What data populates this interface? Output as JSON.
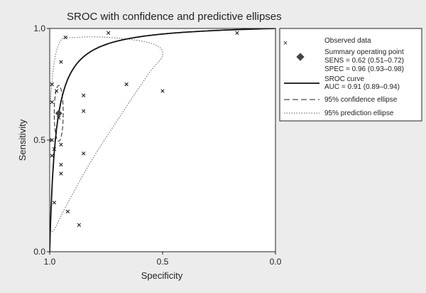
{
  "chart_data": {
    "type": "scatter",
    "title": "SROC with confidence and predictive ellipses",
    "xlabel": "Specificity",
    "ylabel": "Sensitivity",
    "x_reversed": true,
    "xlim": [
      1.0,
      0.0
    ],
    "ylim": [
      0.0,
      1.0
    ],
    "x_ticks": [
      "1.0",
      "0.5",
      "0.0"
    ],
    "y_ticks": [
      "0.0",
      "0.5",
      "1.0"
    ],
    "grid": false,
    "legend_position": "top-right",
    "colors": {
      "observed": "#222222",
      "summary": "#444444",
      "sroc": "#111111",
      "confidence": "#222222",
      "prediction": "#777777"
    },
    "series": [
      {
        "name": "Observed data",
        "kind": "scatter",
        "points": [
          {
            "spec": 0.93,
            "sens": 0.96
          },
          {
            "spec": 0.74,
            "sens": 0.98
          },
          {
            "spec": 0.17,
            "sens": 0.98
          },
          {
            "spec": 0.95,
            "sens": 0.85
          },
          {
            "spec": 0.66,
            "sens": 0.75
          },
          {
            "spec": 0.5,
            "sens": 0.72
          },
          {
            "spec": 0.85,
            "sens": 0.7
          },
          {
            "spec": 0.85,
            "sens": 0.63
          },
          {
            "spec": 0.99,
            "sens": 0.75
          },
          {
            "spec": 0.97,
            "sens": 0.72
          },
          {
            "spec": 0.99,
            "sens": 0.67
          },
          {
            "spec": 0.96,
            "sens": 0.6
          },
          {
            "spec": 1.0,
            "sens": 0.5
          },
          {
            "spec": 0.99,
            "sens": 0.5
          },
          {
            "spec": 0.98,
            "sens": 0.46
          },
          {
            "spec": 0.99,
            "sens": 0.43
          },
          {
            "spec": 0.95,
            "sens": 0.48
          },
          {
            "spec": 0.85,
            "sens": 0.44
          },
          {
            "spec": 0.95,
            "sens": 0.39
          },
          {
            "spec": 0.95,
            "sens": 0.35
          },
          {
            "spec": 0.98,
            "sens": 0.22
          },
          {
            "spec": 0.92,
            "sens": 0.18
          },
          {
            "spec": 0.87,
            "sens": 0.12
          }
        ]
      },
      {
        "name": "Summary operating point",
        "kind": "point",
        "point": {
          "spec": 0.96,
          "sens": 0.62
        },
        "labels": [
          "Summary operating point",
          "SENS = 0.62 (0.51–0.72)",
          "SPEC = 0.96 (0.93–0.98)"
        ]
      },
      {
        "name": "SROC curve",
        "kind": "curve",
        "dor": 39,
        "labels": [
          "SROC curve",
          "AUC = 0.91 (0.89–0.94)"
        ]
      },
      {
        "name": "95% confidence ellipse",
        "kind": "ellipse",
        "center": {
          "spec": 0.96,
          "sens": 0.62
        },
        "semi_spec": 0.02,
        "semi_sens": 0.125,
        "labels": [
          "95% confidence ellipse"
        ]
      },
      {
        "name": "95% prediction ellipse",
        "kind": "closed-curve",
        "points": [
          {
            "spec": 0.99,
            "sens": 0.09
          },
          {
            "spec": 0.93,
            "sens": 0.2
          },
          {
            "spec": 0.82,
            "sens": 0.4
          },
          {
            "spec": 0.68,
            "sens": 0.62
          },
          {
            "spec": 0.56,
            "sens": 0.8
          },
          {
            "spec": 0.5,
            "sens": 0.88
          },
          {
            "spec": 0.54,
            "sens": 0.93
          },
          {
            "spec": 0.7,
            "sens": 0.957
          },
          {
            "spec": 0.88,
            "sens": 0.96
          },
          {
            "spec": 0.96,
            "sens": 0.93
          },
          {
            "spec": 0.995,
            "sens": 0.7
          },
          {
            "spec": 1.0,
            "sens": 0.4
          },
          {
            "spec": 1.0,
            "sens": 0.2
          }
        ],
        "labels": [
          "95% prediction ellipse"
        ]
      }
    ]
  }
}
